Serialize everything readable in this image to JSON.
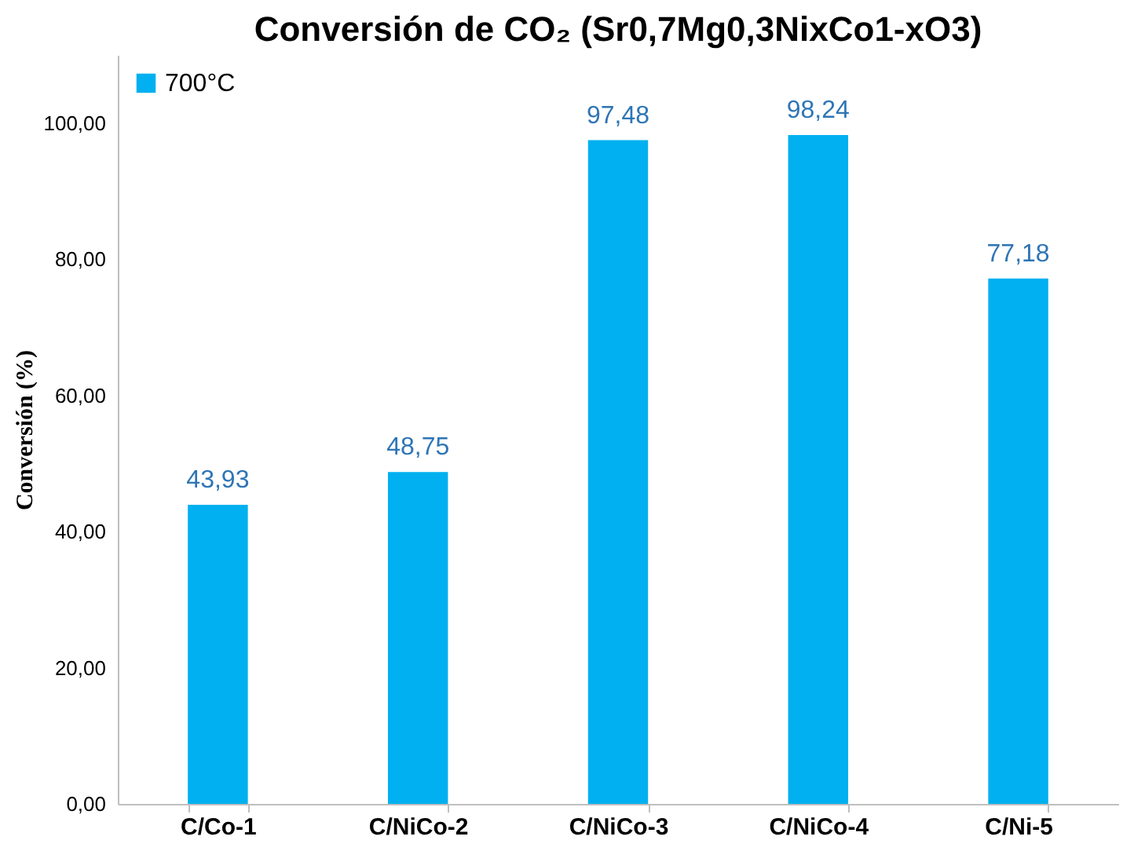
{
  "chart_data": {
    "type": "bar",
    "title": "Conversión de CO₂ (Sr0,7Mg0,3NixCo1-xO3)",
    "ylabel": "Conversión (%)",
    "categories": [
      "C/Co-1",
      "C/NiCo-2",
      "C/NiCo-3",
      "C/NiCo-4",
      "C/Ni-5"
    ],
    "series": [
      {
        "name": "700°C",
        "color": "#00b0f0",
        "values": [
          43.93,
          48.75,
          97.48,
          98.24,
          77.18
        ],
        "value_labels": [
          "43,93",
          "48,75",
          "97,48",
          "98,24",
          "77,18"
        ]
      }
    ],
    "ylim": [
      0,
      110
    ],
    "yticks": [
      {
        "value": 0,
        "label": "0,00"
      },
      {
        "value": 20,
        "label": "20,00"
      },
      {
        "value": 40,
        "label": "40,00"
      },
      {
        "value": 60,
        "label": "60,00"
      },
      {
        "value": 80,
        "label": "80,00"
      },
      {
        "value": 100,
        "label": "100,00"
      }
    ],
    "grid": false,
    "legend": "top left"
  }
}
